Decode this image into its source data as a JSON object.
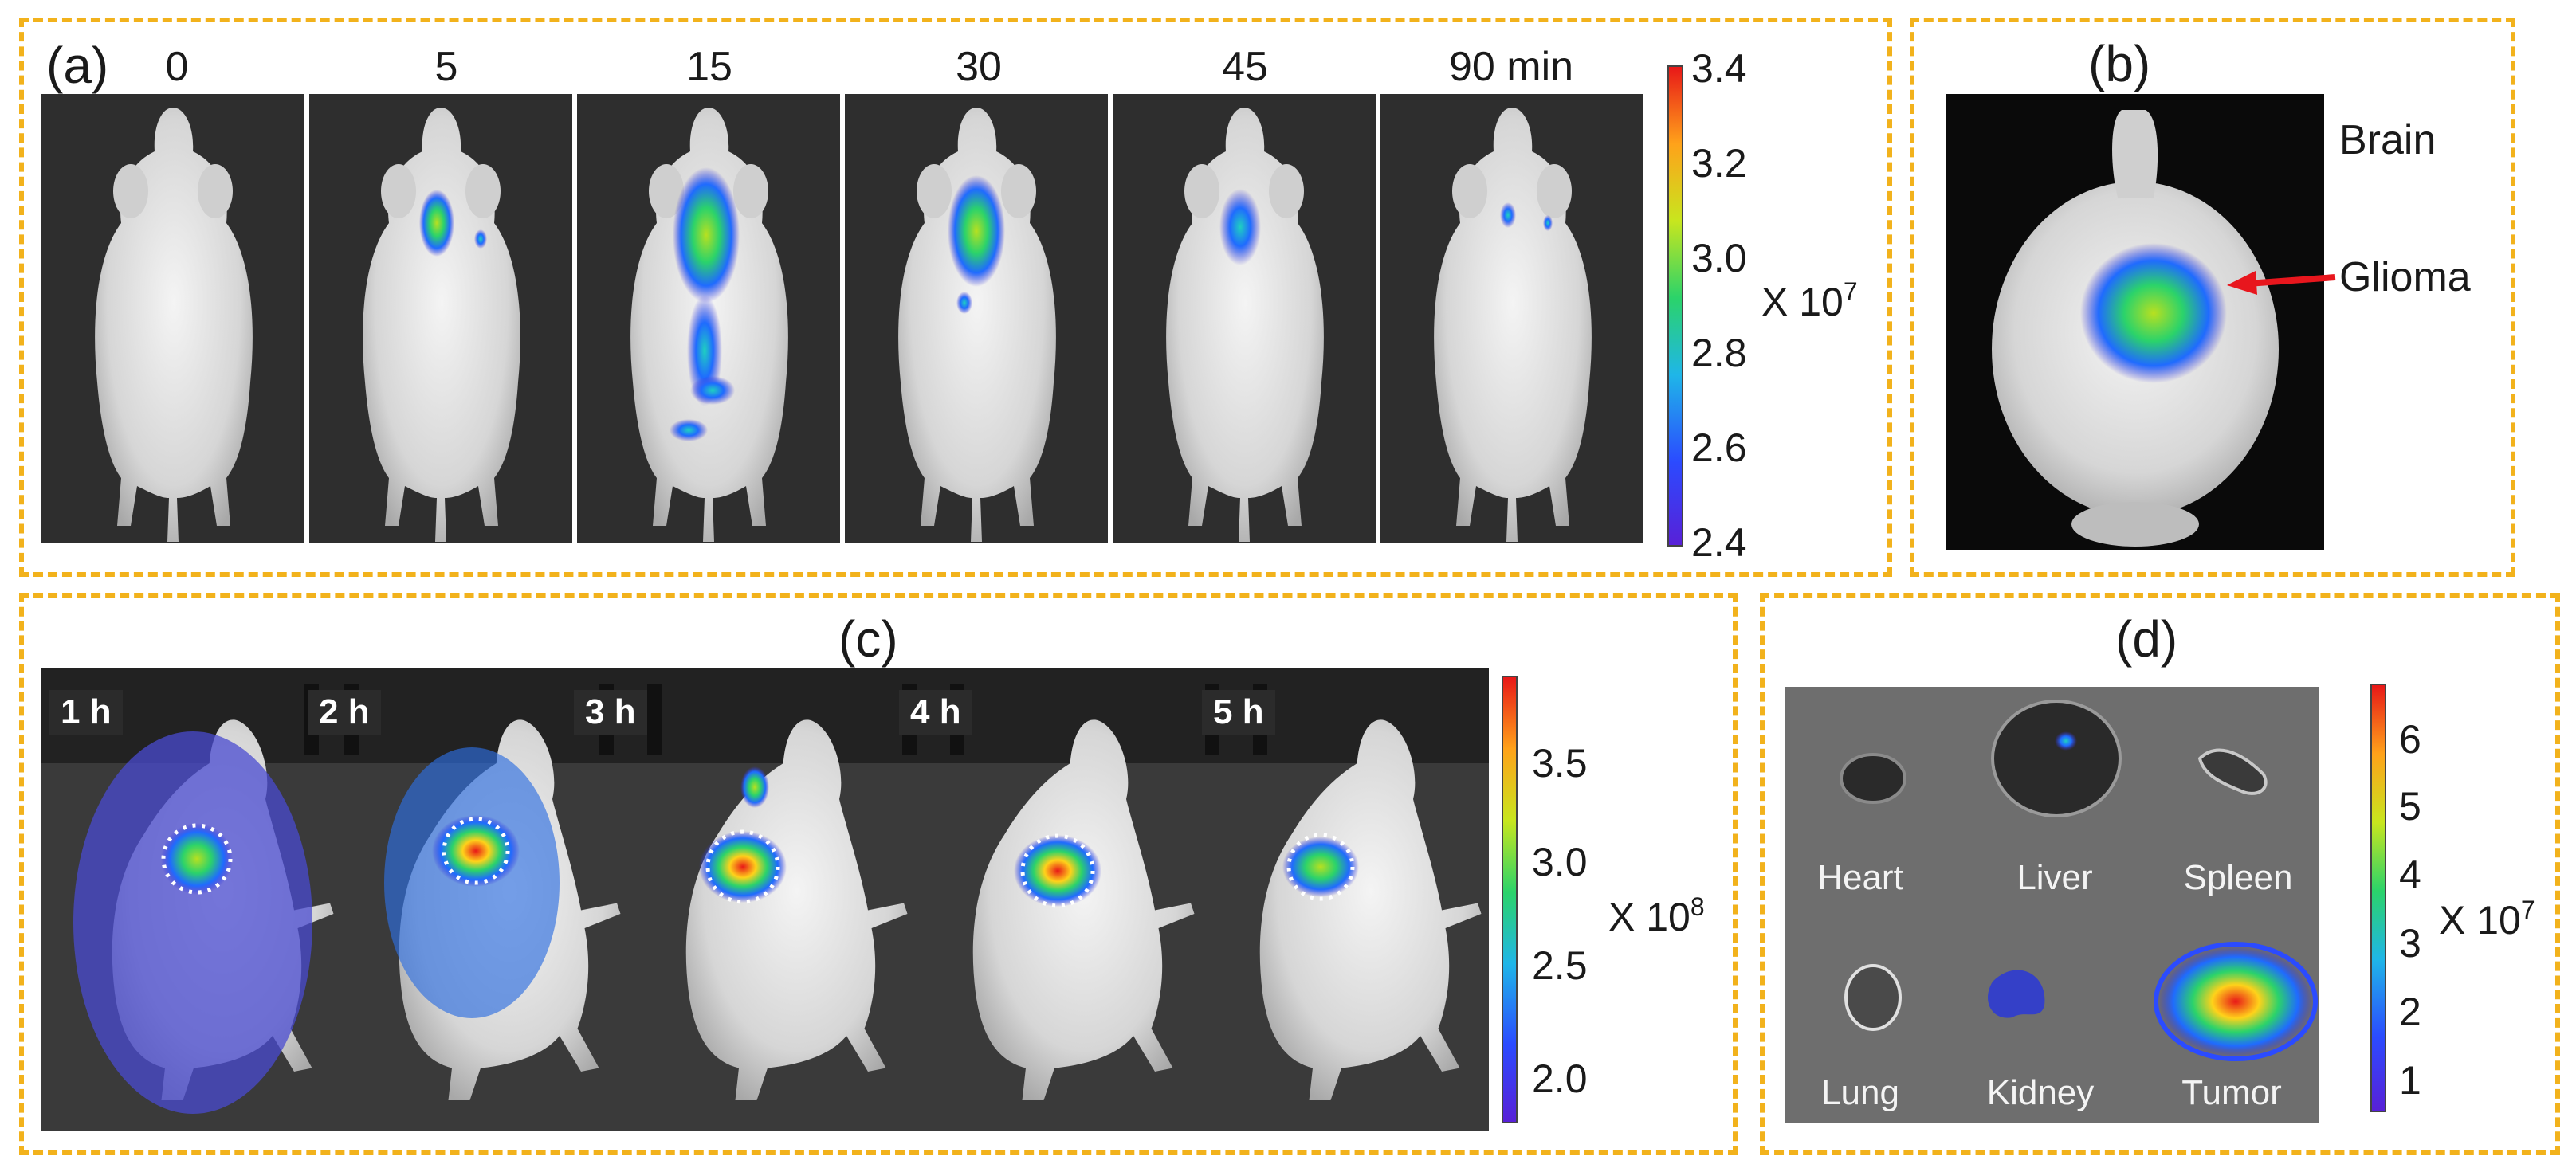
{
  "panel_a": {
    "label": "(a)",
    "times": [
      "0",
      "5",
      "15",
      "30",
      "45",
      "90 min"
    ],
    "colorbar": {
      "ticks": [
        "3.4",
        "3.2",
        "3.0",
        "2.8",
        "2.6",
        "2.4"
      ],
      "unit_base": "X 10",
      "unit_exp": "7"
    }
  },
  "panel_b": {
    "label": "(b)",
    "brain": "Brain",
    "glioma": "Glioma"
  },
  "panel_c": {
    "label": "(c)",
    "times": [
      "1 h",
      "2 h",
      "3 h",
      "4 h",
      "5 h"
    ],
    "colorbar": {
      "ticks": [
        "3.5",
        "3.0",
        "2.5",
        "2.0"
      ],
      "unit_base": "X 10",
      "unit_exp": "8"
    }
  },
  "panel_d": {
    "label": "(d)",
    "organs": [
      "Heart",
      "Liver",
      "Spleen",
      "Lung",
      "Kidney",
      "Tumor"
    ],
    "colorbar": {
      "ticks": [
        "6",
        "5",
        "4",
        "3",
        "2",
        "1"
      ],
      "unit_base": "X 10",
      "unit_exp": "7"
    }
  },
  "colors": {
    "border": "#f2b21c",
    "arrow": "#e8161d"
  }
}
